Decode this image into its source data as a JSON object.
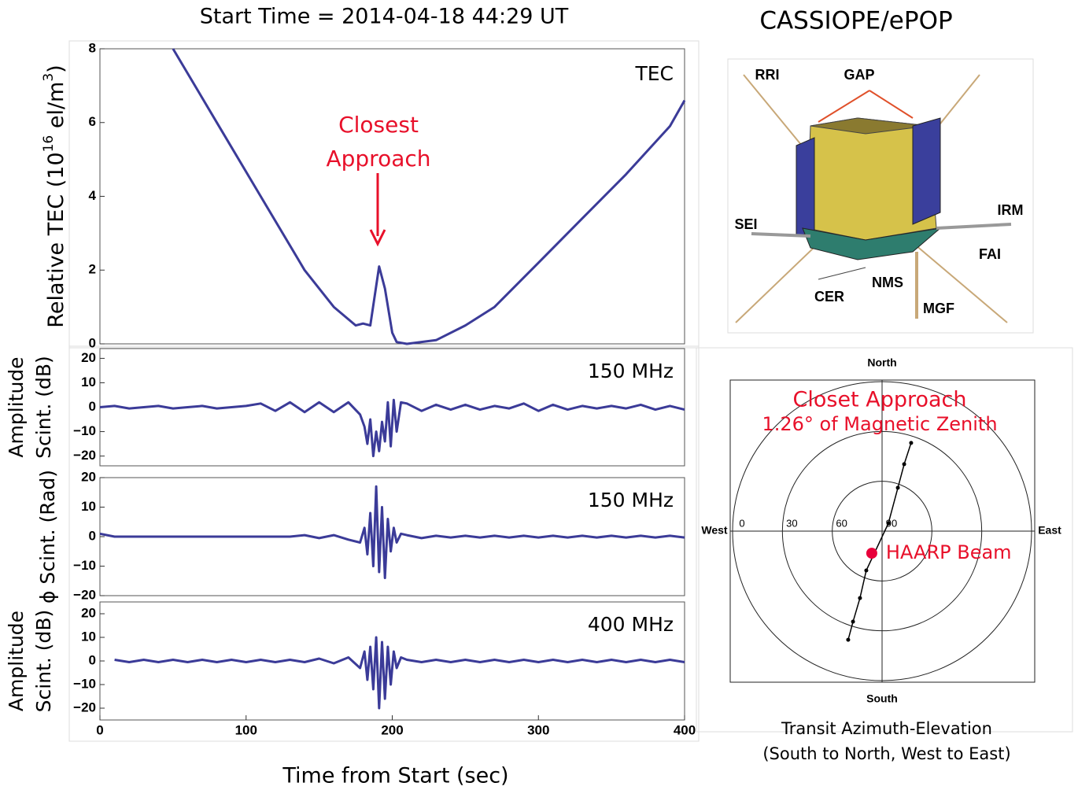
{
  "header": {
    "start_time": "Start Time = 2014-04-18 44:29 UT",
    "mission": "CASSIOPE/ePOP"
  },
  "satellite": {
    "labels": [
      "RRI",
      "GAP",
      "SEI",
      "IRM",
      "FAI",
      "NMS",
      "CER",
      "MGF"
    ]
  },
  "chart_data": [
    {
      "type": "line",
      "label": "TEC",
      "ylabel": [
        "Relative TEC (10",
        "16",
        " el/m",
        "3",
        ")"
      ],
      "annotation": [
        "Closest",
        "Approach"
      ],
      "xlim": [
        0,
        400
      ],
      "ylim": [
        0,
        8
      ],
      "yticks": [
        0,
        2,
        4,
        6,
        8
      ],
      "x": [
        50,
        80,
        110,
        140,
        160,
        175,
        180,
        185,
        188,
        191,
        195,
        200,
        203,
        210,
        230,
        250,
        270,
        300,
        330,
        360,
        390,
        400
      ],
      "series": [
        {
          "color": "#3b3b98",
          "values": [
            8,
            6,
            4,
            2,
            1,
            0.5,
            0.55,
            0.5,
            1.3,
            2.1,
            1.5,
            0.3,
            0.05,
            0,
            0.1,
            0.5,
            1,
            2.2,
            3.4,
            4.6,
            5.9,
            6.6
          ]
        }
      ]
    },
    {
      "type": "line",
      "label": "150 MHz",
      "ylabel": [
        "Amplitude",
        "Scint. (dB)"
      ],
      "xlim": [
        0,
        400
      ],
      "ylim": [
        -24,
        24
      ],
      "yticks": [
        {
          "value": -20,
          "label": "−20"
        },
        {
          "value": -10,
          "label": "−10"
        },
        0,
        10,
        20
      ],
      "x": [
        0,
        10,
        20,
        30,
        40,
        50,
        60,
        70,
        80,
        90,
        100,
        110,
        120,
        130,
        140,
        150,
        160,
        170,
        178,
        181,
        183,
        185,
        187,
        189,
        191,
        193,
        195,
        197,
        199,
        201,
        203,
        206,
        210,
        220,
        230,
        240,
        250,
        260,
        270,
        280,
        290,
        300,
        310,
        320,
        330,
        340,
        350,
        360,
        370,
        380,
        390,
        400
      ],
      "series": [
        {
          "color": "#3b3b98",
          "values": [
            0,
            0.5,
            -0.5,
            0,
            0.5,
            -0.5,
            0,
            0.5,
            -0.5,
            0,
            0.5,
            1.5,
            -1.5,
            2,
            -2,
            2,
            -2,
            2,
            -3,
            -8,
            -15,
            -5,
            -20,
            -10,
            -18,
            -6,
            -14,
            2,
            -16,
            3,
            -10,
            2,
            1.5,
            -1.5,
            1,
            -1,
            1,
            -1,
            0.5,
            -0.5,
            1.5,
            -1.5,
            1,
            -1,
            0.5,
            -0.5,
            0.5,
            -0.5,
            1,
            -1,
            0.5,
            -1
          ]
        }
      ]
    },
    {
      "type": "line",
      "label": "150 MHz",
      "ylabel": [
        "ϕ Scint. (Rad)"
      ],
      "xlim": [
        0,
        400
      ],
      "ylim": [
        -20,
        20
      ],
      "yticks": [
        {
          "value": -20,
          "label": "−20"
        },
        {
          "value": -10,
          "label": "−10"
        },
        0,
        10,
        20
      ],
      "x": [
        0,
        10,
        20,
        30,
        40,
        50,
        60,
        70,
        80,
        90,
        100,
        110,
        120,
        130,
        140,
        150,
        160,
        170,
        178,
        181,
        183,
        185,
        187,
        189,
        191,
        193,
        195,
        197,
        199,
        201,
        203,
        206,
        210,
        220,
        230,
        240,
        250,
        260,
        270,
        280,
        290,
        300,
        310,
        320,
        330,
        340,
        350,
        360,
        370,
        380,
        390,
        400
      ],
      "series": [
        {
          "color": "#3b3b98",
          "values": [
            1,
            0,
            0,
            0,
            0,
            0,
            0,
            0,
            0,
            0,
            0,
            0,
            0,
            0,
            0.5,
            -0.5,
            0.5,
            -1,
            -2,
            3,
            -6,
            8,
            -10,
            17,
            -12,
            10,
            -14,
            6,
            -5,
            3,
            -2,
            1,
            0.5,
            -0.5,
            0.3,
            -0.3,
            0.3,
            -0.3,
            0.3,
            -0.3,
            0.3,
            -0.3,
            0.3,
            -0.3,
            0.3,
            -0.3,
            0.3,
            -0.3,
            0.3,
            -0.3,
            0.3,
            -0.3
          ]
        }
      ]
    },
    {
      "type": "line",
      "label": "400 MHz",
      "ylabel": [
        "Amplitude",
        "Scint. (dB)"
      ],
      "xlabel": "Time from Start (sec)",
      "xlim": [
        0,
        400
      ],
      "ylim": [
        -25,
        25
      ],
      "xticks": [
        0,
        100,
        200,
        300,
        400
      ],
      "yticks": [
        {
          "value": -20,
          "label": "−20"
        },
        {
          "value": -10,
          "label": "−10"
        },
        0,
        10,
        20
      ],
      "x": [
        0,
        10,
        20,
        30,
        40,
        50,
        60,
        70,
        80,
        90,
        100,
        110,
        120,
        130,
        140,
        150,
        160,
        170,
        178,
        181,
        183,
        185,
        187,
        189,
        191,
        193,
        195,
        197,
        199,
        201,
        203,
        206,
        210,
        220,
        230,
        240,
        250,
        260,
        270,
        280,
        290,
        300,
        310,
        320,
        330,
        340,
        350,
        360,
        370,
        380,
        390,
        400
      ],
      "series": [
        {
          "color": "#3b3b98",
          "values": [
            null,
            0.5,
            -0.5,
            0.5,
            -0.5,
            0.5,
            -0.5,
            0.5,
            -0.5,
            0.5,
            -0.5,
            0.5,
            -0.5,
            0.5,
            -0.5,
            1,
            -1,
            1.5,
            -3,
            4,
            -8,
            6,
            -12,
            10,
            -20,
            8,
            -16,
            6,
            -10,
            4,
            -3,
            1.5,
            0.5,
            -0.5,
            0.5,
            -0.5,
            0.5,
            -0.5,
            0.5,
            -0.5,
            0.5,
            -0.5,
            0.5,
            -0.5,
            0.5,
            -0.5,
            0.5,
            -0.5,
            0.5,
            -0.5,
            0.5,
            -0.5
          ]
        }
      ]
    },
    {
      "type": "polar",
      "title": "Closet Approach",
      "subtitle": "1.26° of Magnetic Zenith",
      "directions": {
        "north": "North",
        "south": "South",
        "west": "West",
        "east": "East"
      },
      "rticks": [
        0,
        30,
        60,
        90
      ],
      "xlim": [
        -90,
        90
      ],
      "ylim": [
        -90,
        90
      ],
      "x": [
        17.5,
        13.3,
        9.5,
        3.8,
        -9.5,
        -13.3,
        -17.5,
        -20.4
      ],
      "y": [
        53.1,
        40.3,
        26.1,
        4.7,
        -23.7,
        -40.3,
        -54.5,
        -65.4
      ],
      "color": "#000000",
      "beam": {
        "label": "HAARP Beam",
        "x": -6.2,
        "y": -13.3,
        "color": "#e8003a"
      },
      "caption": [
        "Transit Azimuth-Elevation",
        "(South to North, West to East)"
      ]
    }
  ]
}
